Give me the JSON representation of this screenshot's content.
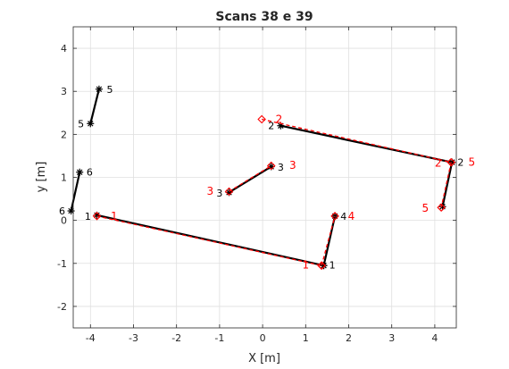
{
  "chart_data": {
    "type": "line",
    "title": "Scans 38 e 39",
    "xlabel": "X [m]",
    "ylabel": "y [m]",
    "xlim": [
      -4.4,
      4.5
    ],
    "ylim": [
      -2.5,
      4.5
    ],
    "xticks": [
      -4,
      -3,
      -2,
      -1,
      0,
      1,
      2,
      3,
      4
    ],
    "yticks": [
      -2,
      -1,
      0,
      1,
      2,
      3,
      4
    ],
    "grid": true,
    "colors": {
      "scan38": "#000000",
      "scan39": "#ff0000"
    },
    "series": [
      {
        "color": "#000000",
        "marker": "asterisk",
        "segments": [
          {
            "p": [
              [
                -3.85,
                0.12
              ],
              [
                1.42,
                -1.05
              ]
            ],
            "labels": [
              "1",
              "1"
            ]
          },
          {
            "p": [
              [
                1.42,
                -1.05
              ],
              [
                1.68,
                0.1
              ]
            ],
            "labels": [
              "",
              "4"
            ]
          },
          {
            "p": [
              [
                -0.78,
                0.65
              ],
              [
                0.2,
                1.25
              ]
            ],
            "labels": [
              "3",
              "3"
            ]
          },
          {
            "p": [
              [
                0.42,
                2.2
              ],
              [
                4.4,
                1.35
              ]
            ],
            "labels": [
              "2",
              "2"
            ]
          },
          {
            "p": [
              [
                4.4,
                1.35
              ],
              [
                4.18,
                0.32
              ]
            ],
            "labels": [
              "",
              ""
            ]
          },
          {
            "p": [
              [
                -4.0,
                2.25
              ],
              [
                -3.8,
                3.05
              ]
            ],
            "labels": [
              "5",
              "5"
            ]
          },
          {
            "p": [
              [
                -4.45,
                0.22
              ],
              [
                -4.25,
                1.12
              ]
            ],
            "labels": [
              "6",
              "6"
            ]
          }
        ]
      },
      {
        "color": "#ff0000",
        "marker": "diamond",
        "segments": [
          {
            "p": [
              [
                -3.85,
                0.1
              ],
              [
                1.37,
                -1.05
              ]
            ],
            "labels": [
              "1",
              "1"
            ]
          },
          {
            "p": [
              [
                1.37,
                -1.05
              ],
              [
                1.68,
                0.1
              ]
            ],
            "labels": [
              "",
              "4"
            ]
          },
          {
            "p": [
              [
                -0.78,
                0.67
              ],
              [
                0.2,
                1.27
              ]
            ],
            "labels": [
              "3",
              "3"
            ]
          },
          {
            "p": [
              [
                -0.02,
                2.35
              ],
              [
                4.38,
                1.35
              ]
            ],
            "labels": [
              "2",
              "2"
            ]
          },
          {
            "p": [
              [
                4.38,
                1.35
              ],
              [
                4.15,
                0.3
              ]
            ],
            "labels": [
              "",
              "5"
            ]
          }
        ]
      }
    ],
    "point_labels": [
      {
        "text": "1",
        "x": 1.62,
        "y": -1.04,
        "color": "#000000"
      },
      {
        "text": "1",
        "x": 1.0,
        "y": -1.04,
        "color": "#ff0000"
      },
      {
        "text": "1",
        "x": -3.45,
        "y": 0.1,
        "color": "#ff0000"
      },
      {
        "text": "1",
        "x": -4.06,
        "y": 0.1,
        "color": "#000000"
      },
      {
        "text": "4",
        "x": 1.88,
        "y": 0.1,
        "color": "#000000"
      },
      {
        "text": "4",
        "x": 2.06,
        "y": 0.1,
        "color": "#ff0000"
      },
      {
        "text": "3",
        "x": 0.42,
        "y": 1.24,
        "color": "#000000"
      },
      {
        "text": "3",
        "x": 0.7,
        "y": 1.28,
        "color": "#ff0000"
      },
      {
        "text": "3",
        "x": -1.0,
        "y": 0.64,
        "color": "#000000"
      },
      {
        "text": "3",
        "x": -1.22,
        "y": 0.68,
        "color": "#ff0000"
      },
      {
        "text": "2",
        "x": 0.2,
        "y": 2.2,
        "color": "#000000"
      },
      {
        "text": "2",
        "x": 0.38,
        "y": 2.35,
        "color": "#ff0000"
      },
      {
        "text": "2",
        "x": 4.6,
        "y": 1.35,
        "color": "#000000"
      },
      {
        "text": "2",
        "x": 4.08,
        "y": 1.33,
        "color": "#ff0000"
      },
      {
        "text": "5",
        "x": 4.86,
        "y": 1.35,
        "color": "#ff0000"
      },
      {
        "text": "5",
        "x": 3.78,
        "y": 0.28,
        "color": "#ff0000"
      },
      {
        "text": "5",
        "x": -3.55,
        "y": 3.05,
        "color": "#000000"
      },
      {
        "text": "5",
        "x": -4.22,
        "y": 2.25,
        "color": "#000000"
      },
      {
        "text": "6",
        "x": -4.02,
        "y": 1.12,
        "color": "#000000"
      },
      {
        "text": "6",
        "x": -4.66,
        "y": 0.22,
        "color": "#000000"
      }
    ]
  }
}
